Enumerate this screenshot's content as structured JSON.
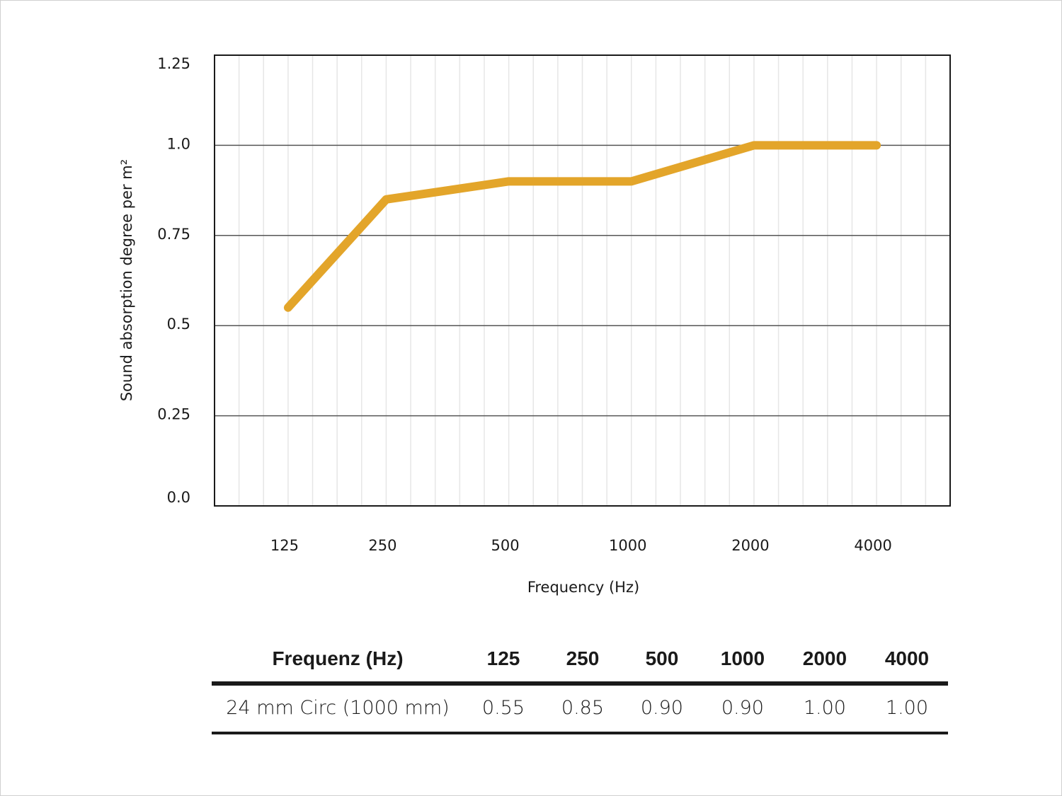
{
  "chart_data": {
    "type": "line",
    "title": "",
    "xlabel": "Frequency (Hz)",
    "ylabel": "Sound absorption degree per m²",
    "categories": [
      "125",
      "250",
      "500",
      "1000",
      "2000",
      "4000"
    ],
    "series": [
      {
        "values": [
          0.55,
          0.85,
          0.9,
          0.9,
          1.0,
          1.0
        ],
        "color": "#e3a52a"
      }
    ],
    "ylim": [
      0,
      1.25
    ],
    "yticks": [
      "0.0",
      "0.25",
      "0.5",
      "0.75",
      "1.0",
      "1.25"
    ],
    "yticks_values": [
      0,
      0.25,
      0.5,
      0.75,
      1.0,
      1.25
    ],
    "grid": true,
    "legend": "none"
  },
  "table": {
    "header": [
      "Frequenz (Hz)",
      "125",
      "250",
      "500",
      "1000",
      "2000",
      "4000"
    ],
    "rows": [
      [
        "24 mm Circ (1000 mm)",
        "0.55",
        "0.85",
        "0.90",
        "0.90",
        "1.00",
        "1.00"
      ]
    ]
  }
}
